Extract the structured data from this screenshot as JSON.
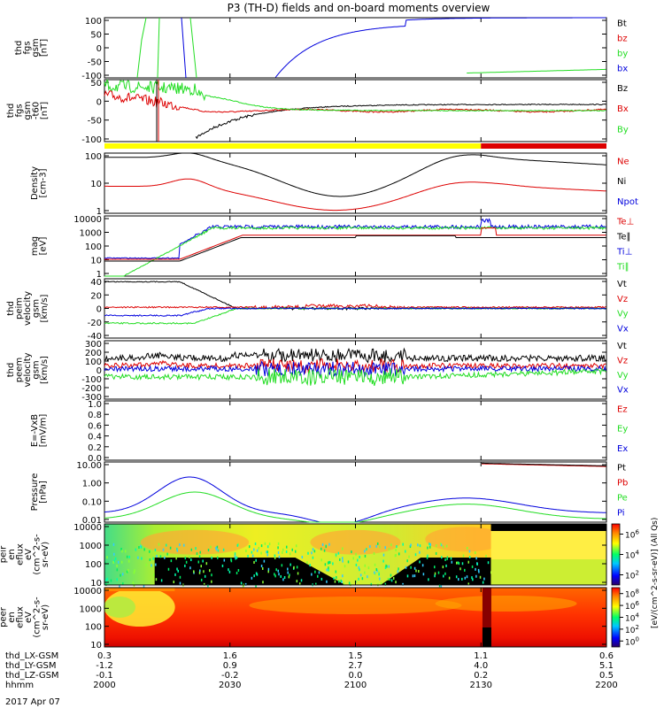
{
  "title": "P3 (TH-D) fields and on-board moments overview",
  "date_label": "2017 Apr 07",
  "colors": {
    "black": "#000000",
    "red": "#dd0000",
    "green": "#22dd22",
    "blue": "#0000dd",
    "yellow": "#ffff00"
  },
  "chart_data": [
    {
      "id": "fgs_total",
      "type": "line",
      "ylabel_lines": [
        "thd",
        "fgs",
        "gsm",
        "[nT]"
      ],
      "yticks": [
        "100",
        "50",
        "0",
        "-50",
        "-100"
      ],
      "ylim": [
        -100,
        100
      ],
      "legend": [
        {
          "name": "Bt",
          "color": "#000000"
        },
        {
          "name": "bz",
          "color": "#dd0000"
        },
        {
          "name": "by",
          "color": "#22dd22"
        },
        {
          "name": "bx",
          "color": "#0000dd"
        }
      ]
    },
    {
      "id": "fgs_detrend",
      "type": "line",
      "ylabel_lines": [
        "thd",
        "fgs",
        "gsm",
        "-t60",
        "[nT]"
      ],
      "yticks": [
        "50",
        "0",
        "-50",
        "-100"
      ],
      "ylim": [
        -120,
        75
      ],
      "legend": [
        {
          "name": "Bz",
          "color": "#000000"
        },
        {
          "name": "Bx",
          "color": "#dd0000"
        },
        {
          "name": "By",
          "color": "#22dd22"
        }
      ]
    },
    {
      "id": "mode_bar",
      "type": "bar",
      "segments": [
        {
          "from": 2000,
          "to": 2130,
          "color": "#ffff00"
        },
        {
          "from": 2130,
          "to": 2200,
          "color": "#dd0000"
        }
      ]
    },
    {
      "id": "density",
      "type": "line",
      "scale": "log",
      "ylabel_lines": [
        "Density",
        "[cm-3]"
      ],
      "yticks": [
        "100",
        "10",
        "1"
      ],
      "ylim": [
        0.4,
        200
      ],
      "legend": [
        {
          "name": "Ne",
          "color": "#dd0000"
        },
        {
          "name": "Ni",
          "color": "#000000"
        },
        {
          "name": "Npot",
          "color": "#0000dd"
        }
      ]
    },
    {
      "id": "temperature",
      "type": "line",
      "scale": "log",
      "ylabel_lines": [
        "mag",
        "[eV]"
      ],
      "yticks": [
        "10000",
        "1000",
        "100",
        "10",
        "1"
      ],
      "ylim": [
        3,
        10000
      ],
      "legend": [
        {
          "name": "Te⊥",
          "color": "#dd0000"
        },
        {
          "name": "Te∥",
          "color": "#000000"
        },
        {
          "name": "Ti⊥",
          "color": "#0000dd"
        },
        {
          "name": "Ti∥",
          "color": "#22dd22"
        }
      ]
    },
    {
      "id": "peim_velocity",
      "type": "line",
      "ylabel_lines": [
        "thd",
        "peim",
        "velocity",
        "gsm",
        "[km/s]"
      ],
      "yticks": [
        "40",
        "20",
        "0",
        "-20",
        "-40"
      ],
      "ylim": [
        -45,
        45
      ],
      "legend": [
        {
          "name": "Vt",
          "color": "#000000"
        },
        {
          "name": "Vz",
          "color": "#dd0000"
        },
        {
          "name": "Vy",
          "color": "#22dd22"
        },
        {
          "name": "Vx",
          "color": "#0000dd"
        }
      ]
    },
    {
      "id": "peem_velocity",
      "type": "line",
      "ylabel_lines": [
        "thd",
        "peem",
        "velocity",
        "gsm",
        "[km/s]"
      ],
      "yticks": [
        "300",
        "200",
        "100",
        "0",
        "-100",
        "-200",
        "-300"
      ],
      "ylim": [
        -300,
        300
      ],
      "legend": [
        {
          "name": "Vt",
          "color": "#000000"
        },
        {
          "name": "Vz",
          "color": "#dd0000"
        },
        {
          "name": "Vy",
          "color": "#22dd22"
        },
        {
          "name": "Vx",
          "color": "#0000dd"
        }
      ]
    },
    {
      "id": "efield",
      "type": "line",
      "ylabel_lines": [
        "E=-VxB",
        "[mV/m]"
      ],
      "yticks": [
        "1.0",
        "0.8",
        "0.6",
        "0.4",
        "0.2",
        "0.0"
      ],
      "ylim": [
        0,
        1
      ],
      "legend": [
        {
          "name": "Ez",
          "color": "#dd0000"
        },
        {
          "name": "Ey",
          "color": "#22dd22"
        },
        {
          "name": "Ex",
          "color": "#0000dd"
        }
      ]
    },
    {
      "id": "pressure",
      "type": "line",
      "scale": "log",
      "ylabel_lines": [
        "Pressure",
        "[nPa]"
      ],
      "yticks": [
        "10.00",
        "1.00",
        "0.10",
        "0.01"
      ],
      "ylim": [
        0.005,
        30
      ],
      "legend": [
        {
          "name": "Pt",
          "color": "#000000"
        },
        {
          "name": "Pb",
          "color": "#dd0000"
        },
        {
          "name": "Pe",
          "color": "#22dd22"
        },
        {
          "name": "Pi",
          "color": "#0000dd"
        }
      ]
    },
    {
      "id": "peir_eflux",
      "type": "heatmap",
      "scale": "log",
      "ylabel_lines": [
        "thd",
        "peir",
        "en",
        "eflux",
        "eV",
        "(cm^2-s-",
        "sr-eV)"
      ],
      "yticks": [
        "10000",
        "1000",
        "100",
        "10"
      ]
    },
    {
      "id": "peer_eflux",
      "type": "heatmap",
      "scale": "log",
      "ylabel_lines": [
        "thd",
        "peer",
        "en",
        "eflux",
        "eV",
        "(cm^2-s-",
        "sr-eV)"
      ],
      "yticks": [
        "10000",
        "1000",
        "100",
        "10"
      ]
    }
  ],
  "colorbar1": {
    "ticks": [
      "10^6",
      "10^4",
      "10^2"
    ],
    "exponents": [
      "6",
      "4",
      "2"
    ]
  },
  "colorbar2": {
    "ticks": [
      "10^8",
      "10^6",
      "10^4",
      "10^2",
      "10^0"
    ],
    "exponents": [
      "8",
      "6",
      "4",
      "2",
      "0"
    ]
  },
  "colorbar_label": "[eV/(cm^2-s-sr-eV)] (All Qs)",
  "xaxis": {
    "row_labels": [
      "thd_LX-GSM",
      "thd_LY-GSM",
      "thd_LZ-GSM",
      "hhmm"
    ],
    "ticks": [
      {
        "t": 2000,
        "lx": "0.3",
        "ly": "-1.2",
        "lz": "-0.1",
        "hhmm": "2000"
      },
      {
        "t": 2030,
        "lx": "1.6",
        "ly": "0.9",
        "lz": "-0.2",
        "hhmm": "2030"
      },
      {
        "t": 2100,
        "lx": "1.5",
        "ly": "2.7",
        "lz": "0.0",
        "hhmm": "2100"
      },
      {
        "t": 2130,
        "lx": "1.1",
        "ly": "4.0",
        "lz": "0.2",
        "hhmm": "2130"
      },
      {
        "t": 2200,
        "lx": "0.6",
        "ly": "5.1",
        "lz": "0.5",
        "hhmm": "2200"
      }
    ]
  }
}
